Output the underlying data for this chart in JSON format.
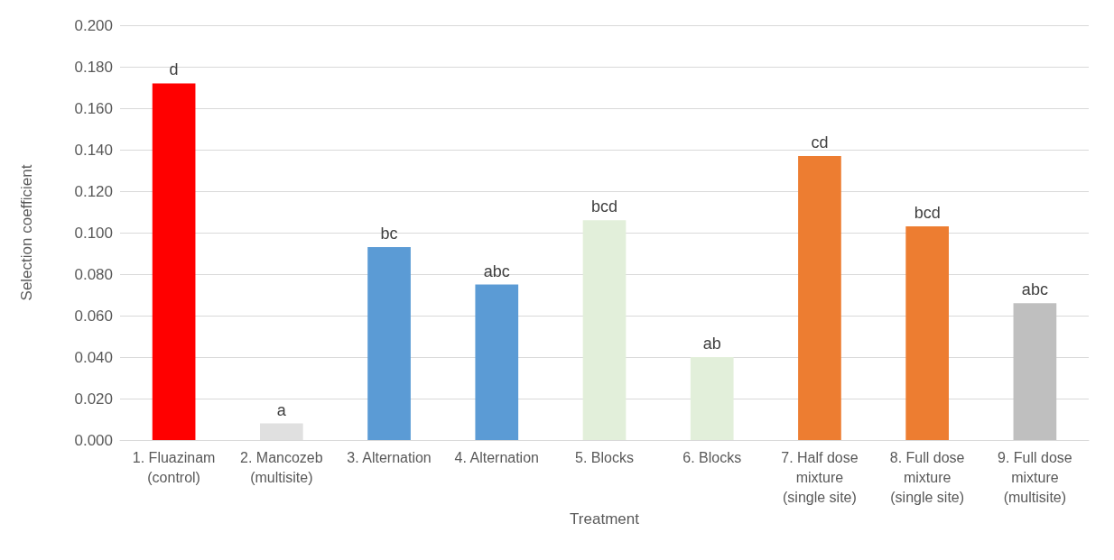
{
  "chart_data": {
    "type": "bar",
    "xlabel": "Treatment",
    "ylabel": "Selection coefficient",
    "categories": [
      "1. Fluazinam\n(control)",
      "2. Mancozeb\n(multisite)",
      "3. Alternation",
      "4. Alternation",
      "5. Blocks",
      "6. Blocks",
      "7. Half dose\nmixture\n(single site)",
      "8. Full dose\nmixture\n(single site)",
      "9. Full dose\nmixture\n(multisite)"
    ],
    "values": [
      0.172,
      0.008,
      0.093,
      0.075,
      0.106,
      0.04,
      0.137,
      0.103,
      0.066
    ],
    "colors": [
      "#ff0000",
      "#e0e0e0",
      "#5b9bd5",
      "#5b9bd5",
      "#e2efda",
      "#e2efda",
      "#ed7d31",
      "#ed7d31",
      "#bfbfbf"
    ],
    "ylim": [
      0,
      0.2
    ],
    "yticks": [
      {
        "value": 0,
        "label": "0.000"
      },
      {
        "value": 0.02,
        "label": "0.020"
      },
      {
        "value": 0.04,
        "label": "0.040"
      },
      {
        "value": 0.06,
        "label": "0.060"
      },
      {
        "value": 0.08,
        "label": "0.080"
      },
      {
        "value": 0.1,
        "label": "0.100"
      },
      {
        "value": 0.12,
        "label": "0.120"
      },
      {
        "value": 0.14,
        "label": "0.140"
      },
      {
        "value": 0.16,
        "label": "0.160"
      },
      {
        "value": 0.18,
        "label": "0.180"
      },
      {
        "value": 0.2,
        "label": "0.200"
      }
    ],
    "grid": "y",
    "annotations": [
      {
        "text": "d",
        "x": "1. Fluazinam\n(control)",
        "y": 0.172
      },
      {
        "text": "a",
        "x": "2. Mancozeb\n(multisite)",
        "y": 0.008
      },
      {
        "text": "bc",
        "x": "3. Alternation",
        "y": 0.093
      },
      {
        "text": "abc",
        "x": "4. Alternation",
        "y": 0.075
      },
      {
        "text": "bcd",
        "x": "5. Blocks",
        "y": 0.106
      },
      {
        "text": "ab",
        "x": "6. Blocks",
        "y": 0.04
      },
      {
        "text": "cd",
        "x": "7. Half dose\nmixture\n(single site)",
        "y": 0.137
      },
      {
        "text": "bcd",
        "x": "8. Full dose\nmixture\n(single site)",
        "y": 0.103
      },
      {
        "text": "abc",
        "x": "9. Full dose\nmixture\n(multisite)",
        "y": 0.066
      }
    ]
  }
}
